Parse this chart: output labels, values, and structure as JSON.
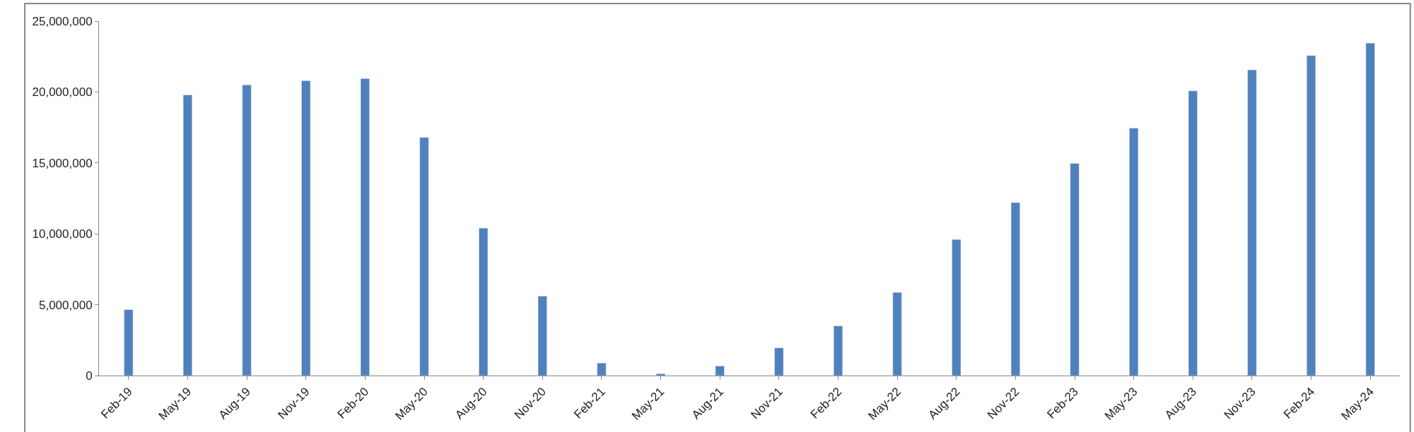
{
  "chart_data": {
    "type": "bar",
    "categories": [
      "Feb-19",
      "May-19",
      "Aug-19",
      "Nov-19",
      "Feb-20",
      "May-20",
      "Aug-20",
      "Nov-20",
      "Feb-21",
      "May-21",
      "Aug-21",
      "Nov-21",
      "Feb-22",
      "May-22",
      "Aug-22",
      "Nov-22",
      "Feb-23",
      "May-23",
      "Aug-23",
      "Nov-23",
      "Feb-24",
      "May-24"
    ],
    "series": [
      {
        "color": "#4f81bd",
        "values": [
          4650000,
          19800000,
          20500000,
          20800000,
          20950000,
          16800000,
          10400000,
          5600000,
          880000,
          130000,
          670000,
          1950000,
          3500000,
          5860000,
          9600000,
          12200000,
          14960000,
          17450000,
          20080000,
          21560000,
          22570000,
          23450000
        ]
      }
    ],
    "ylim": [
      0,
      25000000
    ],
    "yticks": [
      {
        "value": 0,
        "label": "0"
      },
      {
        "value": 5000000,
        "label": "5,000,000"
      },
      {
        "value": 10000000,
        "label": "10,000,000"
      },
      {
        "value": 15000000,
        "label": "15,000,000"
      },
      {
        "value": 20000000,
        "label": "20,000,000"
      },
      {
        "value": 25000000,
        "label": "25,000,000"
      }
    ],
    "grid": false
  }
}
